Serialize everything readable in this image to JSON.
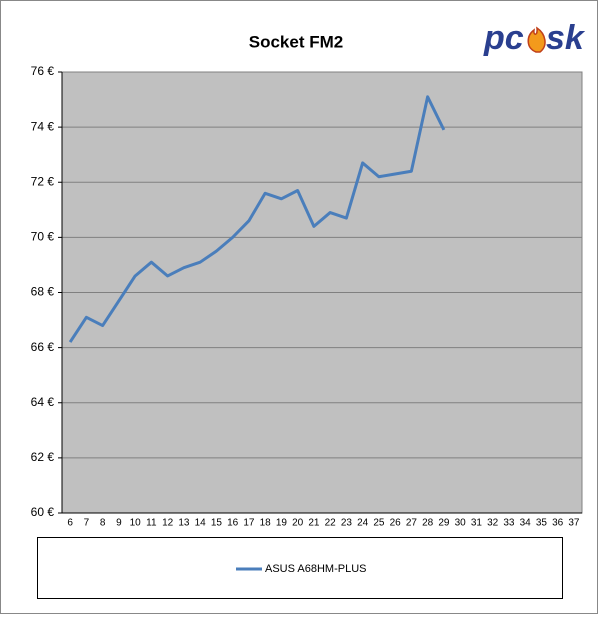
{
  "chart_data": {
    "type": "line",
    "title": "Socket FM2",
    "logo": {
      "left": "pc",
      "right": "sk"
    },
    "categories": [
      6,
      7,
      8,
      9,
      10,
      11,
      12,
      13,
      14,
      15,
      16,
      17,
      18,
      19,
      20,
      21,
      22,
      23,
      24,
      25,
      26,
      27,
      28,
      29,
      30,
      31,
      32,
      33,
      34,
      35,
      36,
      37
    ],
    "series": [
      {
        "name": "ASUS A68HM-PLUS",
        "color": "#4a7ebb",
        "values": [
          66.2,
          67.1,
          66.8,
          67.7,
          68.6,
          69.1,
          68.6,
          68.9,
          69.1,
          69.5,
          70.0,
          70.6,
          71.6,
          71.4,
          71.7,
          70.4,
          70.9,
          70.7,
          72.7,
          72.2,
          72.3,
          72.4,
          75.1,
          73.9,
          null,
          null,
          null,
          null,
          null,
          null,
          null,
          null
        ]
      }
    ],
    "ylim": [
      60,
      76
    ],
    "yticks": [
      {
        "value": 60,
        "label": "60 €"
      },
      {
        "value": 62,
        "label": "62 €"
      },
      {
        "value": 64,
        "label": "64 €"
      },
      {
        "value": 66,
        "label": "66 €"
      },
      {
        "value": 68,
        "label": "68 €"
      },
      {
        "value": 70,
        "label": "70 €"
      },
      {
        "value": 72,
        "label": "72 €"
      },
      {
        "value": 74,
        "label": "74 €"
      },
      {
        "value": 76,
        "label": "76 €"
      }
    ],
    "grid": true,
    "plot_background": "#c0c0c0",
    "legend": "bottom"
  }
}
